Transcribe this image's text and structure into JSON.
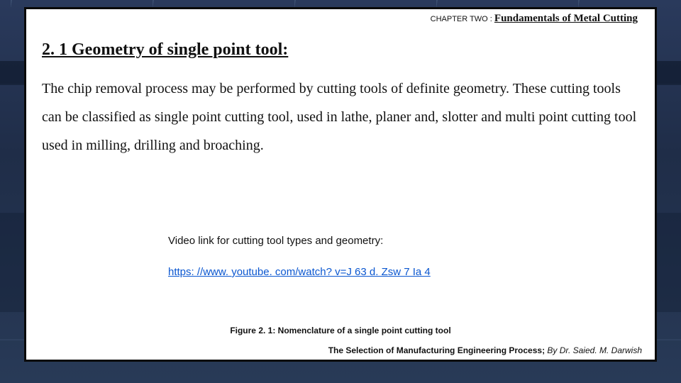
{
  "colors": {
    "page_bg_top": "#2a3a5c",
    "page_bg_bottom": "#283a57",
    "box_bg": "#ffffff",
    "box_border": "#0a0a0a",
    "text": "#111111",
    "link": "#0b57d0"
  },
  "header": {
    "chapter_lead": "CHAPTER TWO : ",
    "chapter_title": "Fundamentals of Metal Cutting"
  },
  "section": {
    "heading": "2. 1 Geometry of single point tool:",
    "body": "The chip removal process may be performed by cutting tools of definite geometry. These cutting tools can be classified as single point cutting tool, used in lathe, planer and, slotter  and multi point cutting tool used in milling, drilling and broaching."
  },
  "video": {
    "label": "Video link for cutting tool types and geometry:",
    "url_text": "https: //www. youtube. com/watch? v=J 63 d. Zsw 7 Ia 4"
  },
  "figure": {
    "caption": "Figure 2. 1: Nomenclature of a single point cutting tool"
  },
  "footer": {
    "book": "The Selection of Manufacturing Engineering Process; ",
    "author": "By Dr. Saied. M. Darwish"
  }
}
